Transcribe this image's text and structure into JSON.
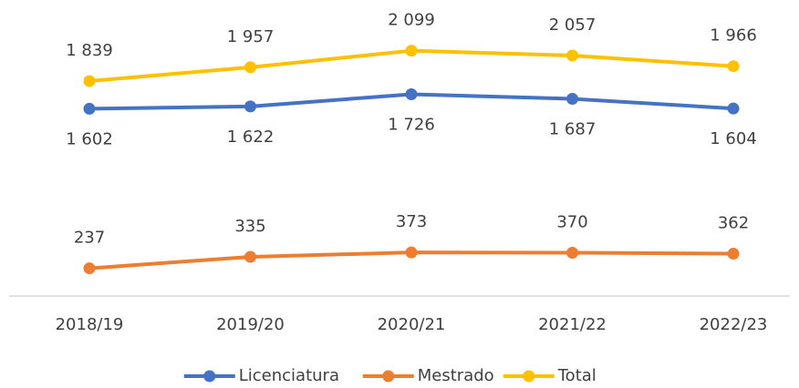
{
  "chart_data": {
    "type": "line",
    "categories": [
      "2018/19",
      "2019/20",
      "2020/21",
      "2021/22",
      "2022/23"
    ],
    "series": [
      {
        "name": "Licenciatura",
        "color": "#4472c4",
        "values": [
          1602,
          1622,
          1726,
          1687,
          1604
        ],
        "value_labels": [
          "1 602",
          "1 622",
          "1 726",
          "1 687",
          "1 604"
        ]
      },
      {
        "name": "Mestrado",
        "color": "#ed7d31",
        "values": [
          237,
          335,
          373,
          370,
          362
        ]
      },
      {
        "name": "Total",
        "color": "#ffc000",
        "values": [
          1839,
          1957,
          2099,
          2057,
          1966
        ],
        "value_labels": [
          "1 839",
          "1 957",
          "2 099",
          "2 057",
          "1 966"
        ]
      }
    ],
    "ylim": [
      0,
      2400
    ],
    "legend": "bottom"
  }
}
